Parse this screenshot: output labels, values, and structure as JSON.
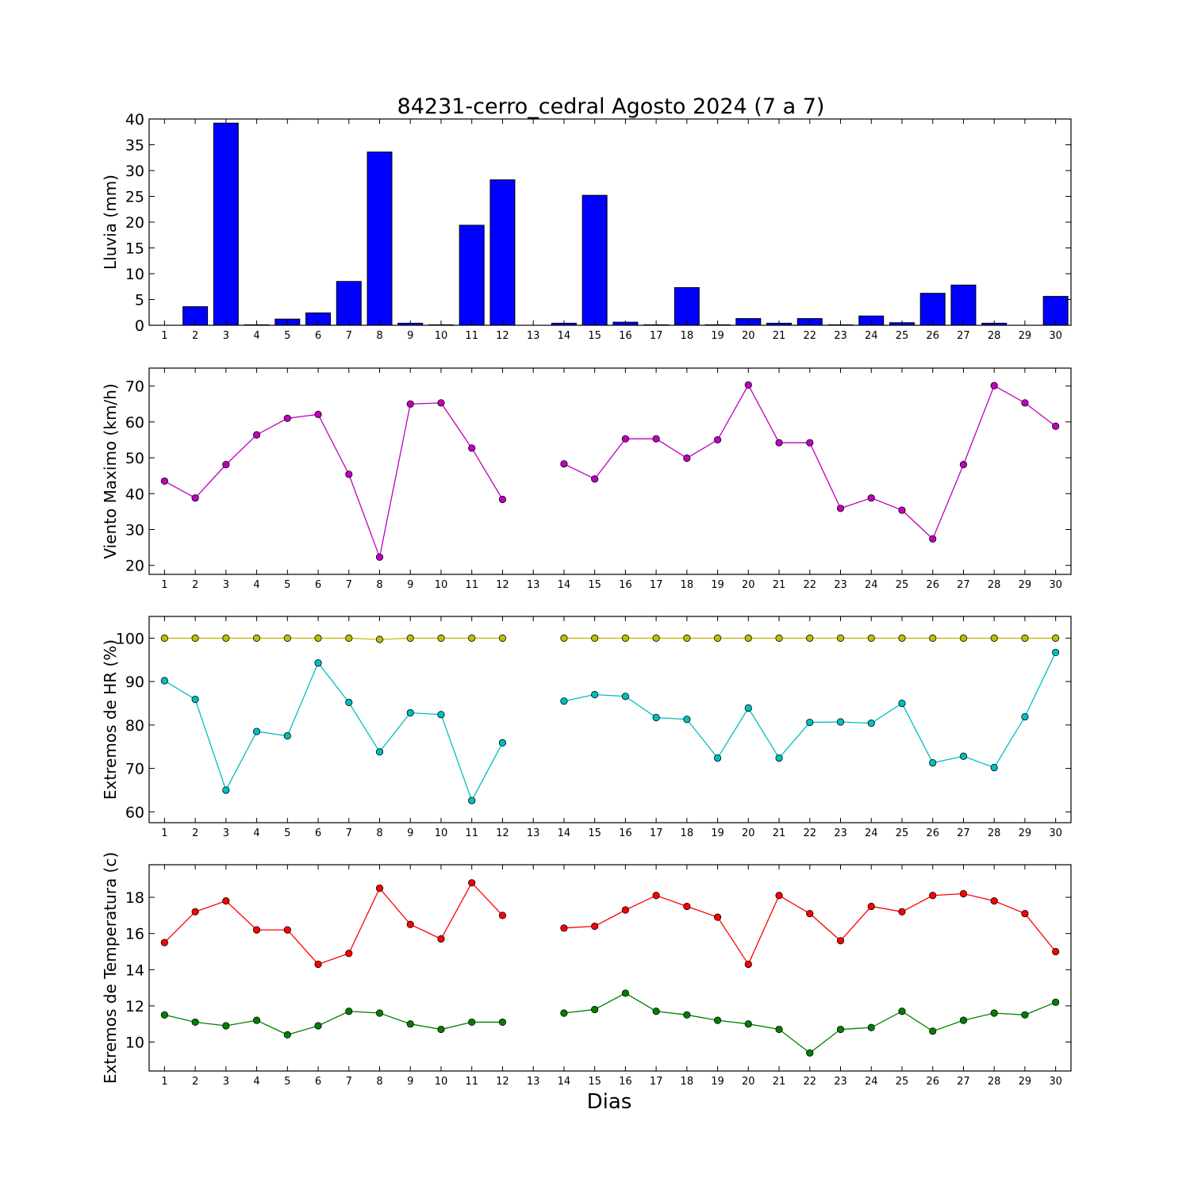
{
  "figure": {
    "title": "84231-cerro_cedral Agosto 2024  (7 a 7)",
    "xlabel": "Dias"
  },
  "chart_data": [
    {
      "type": "bar",
      "ylabel": "Lluvia (mm)",
      "ylim": [
        0,
        40
      ],
      "yticks": [
        0,
        5,
        10,
        15,
        20,
        25,
        30,
        35,
        40
      ],
      "x": [
        1,
        2,
        3,
        4,
        5,
        6,
        7,
        8,
        9,
        10,
        11,
        12,
        13,
        14,
        15,
        16,
        17,
        18,
        19,
        20,
        21,
        22,
        23,
        24,
        25,
        26,
        27,
        28,
        29,
        30
      ],
      "series": [
        {
          "color": "#0000ff",
          "values": [
            0,
            3.6,
            39.2,
            0.1,
            1.2,
            2.4,
            8.5,
            33.6,
            0.4,
            0.1,
            19.4,
            28.2,
            null,
            0.4,
            25.2,
            0.6,
            0.1,
            7.3,
            0.1,
            1.3,
            0.4,
            1.3,
            0.1,
            1.8,
            0.5,
            6.2,
            7.8,
            0.4,
            0,
            5.6
          ]
        }
      ]
    },
    {
      "type": "line",
      "ylabel": "Viento Maximo (km/h)",
      "ylim": [
        17.5,
        75
      ],
      "yticks": [
        20,
        30,
        40,
        50,
        60,
        70
      ],
      "x": [
        1,
        2,
        3,
        4,
        5,
        6,
        7,
        8,
        9,
        10,
        11,
        12,
        13,
        14,
        15,
        16,
        17,
        18,
        19,
        20,
        21,
        22,
        23,
        24,
        25,
        26,
        27,
        28,
        29,
        30
      ],
      "series": [
        {
          "color": "#bf00bf",
          "values": [
            43.5,
            38.8,
            48.1,
            56.4,
            61,
            62.1,
            45.4,
            22.3,
            65,
            65.3,
            52.7,
            38.4,
            null,
            48.3,
            44.1,
            55.3,
            55.3,
            49.9,
            55,
            70.3,
            54.2,
            54.2,
            35.9,
            38.8,
            35.4,
            27.4,
            48.1,
            70.1,
            65.3,
            58.8
          ]
        }
      ]
    },
    {
      "type": "line",
      "ylabel": "Extremos de HR (%)",
      "ylim": [
        57.5,
        105
      ],
      "yticks": [
        60,
        70,
        80,
        90,
        100
      ],
      "x": [
        1,
        2,
        3,
        4,
        5,
        6,
        7,
        8,
        9,
        10,
        11,
        12,
        13,
        14,
        15,
        16,
        17,
        18,
        19,
        20,
        21,
        22,
        23,
        24,
        25,
        26,
        27,
        28,
        29,
        30
      ],
      "series": [
        {
          "color": "#bfbf00",
          "values": [
            100,
            100,
            100,
            100,
            100,
            100,
            100,
            99.7,
            100,
            100,
            100,
            100,
            null,
            100,
            100,
            100,
            100,
            100,
            100,
            100,
            100,
            100,
            100,
            100,
            100,
            100,
            100,
            100,
            100,
            100
          ]
        },
        {
          "color": "#00bfbf",
          "values": [
            90.2,
            85.9,
            65,
            78.5,
            77.5,
            94.3,
            85.2,
            73.8,
            82.8,
            82.4,
            62.6,
            75.9,
            null,
            85.5,
            87,
            86.6,
            81.7,
            81.3,
            72.4,
            83.9,
            72.4,
            80.6,
            80.7,
            80.4,
            85,
            71.3,
            72.8,
            70.2,
            81.9,
            96.7
          ]
        }
      ]
    },
    {
      "type": "line",
      "ylabel": "Extremos de Temperatura (c)",
      "ylim": [
        8.4,
        19.8
      ],
      "yticks": [
        10,
        12,
        14,
        16,
        18
      ],
      "x": [
        1,
        2,
        3,
        4,
        5,
        6,
        7,
        8,
        9,
        10,
        11,
        12,
        13,
        14,
        15,
        16,
        17,
        18,
        19,
        20,
        21,
        22,
        23,
        24,
        25,
        26,
        27,
        28,
        29,
        30
      ],
      "series": [
        {
          "color": "#ff0000",
          "values": [
            15.5,
            17.2,
            17.8,
            16.2,
            16.2,
            14.3,
            14.9,
            18.5,
            16.5,
            15.7,
            18.8,
            17,
            null,
            16.3,
            16.4,
            17.3,
            18.1,
            17.5,
            16.9,
            14.3,
            18.1,
            17.1,
            15.6,
            17.5,
            17.2,
            18.1,
            18.2,
            17.8,
            17.1,
            15
          ]
        },
        {
          "color": "#008000",
          "values": [
            11.5,
            11.1,
            10.9,
            11.2,
            10.4,
            10.9,
            11.7,
            11.6,
            11,
            10.7,
            11.1,
            11.1,
            null,
            11.6,
            11.8,
            12.7,
            11.7,
            11.5,
            11.2,
            11,
            10.7,
            9.4,
            10.7,
            10.8,
            11.7,
            10.6,
            11.2,
            11.6,
            11.5,
            12.2
          ]
        }
      ]
    }
  ]
}
